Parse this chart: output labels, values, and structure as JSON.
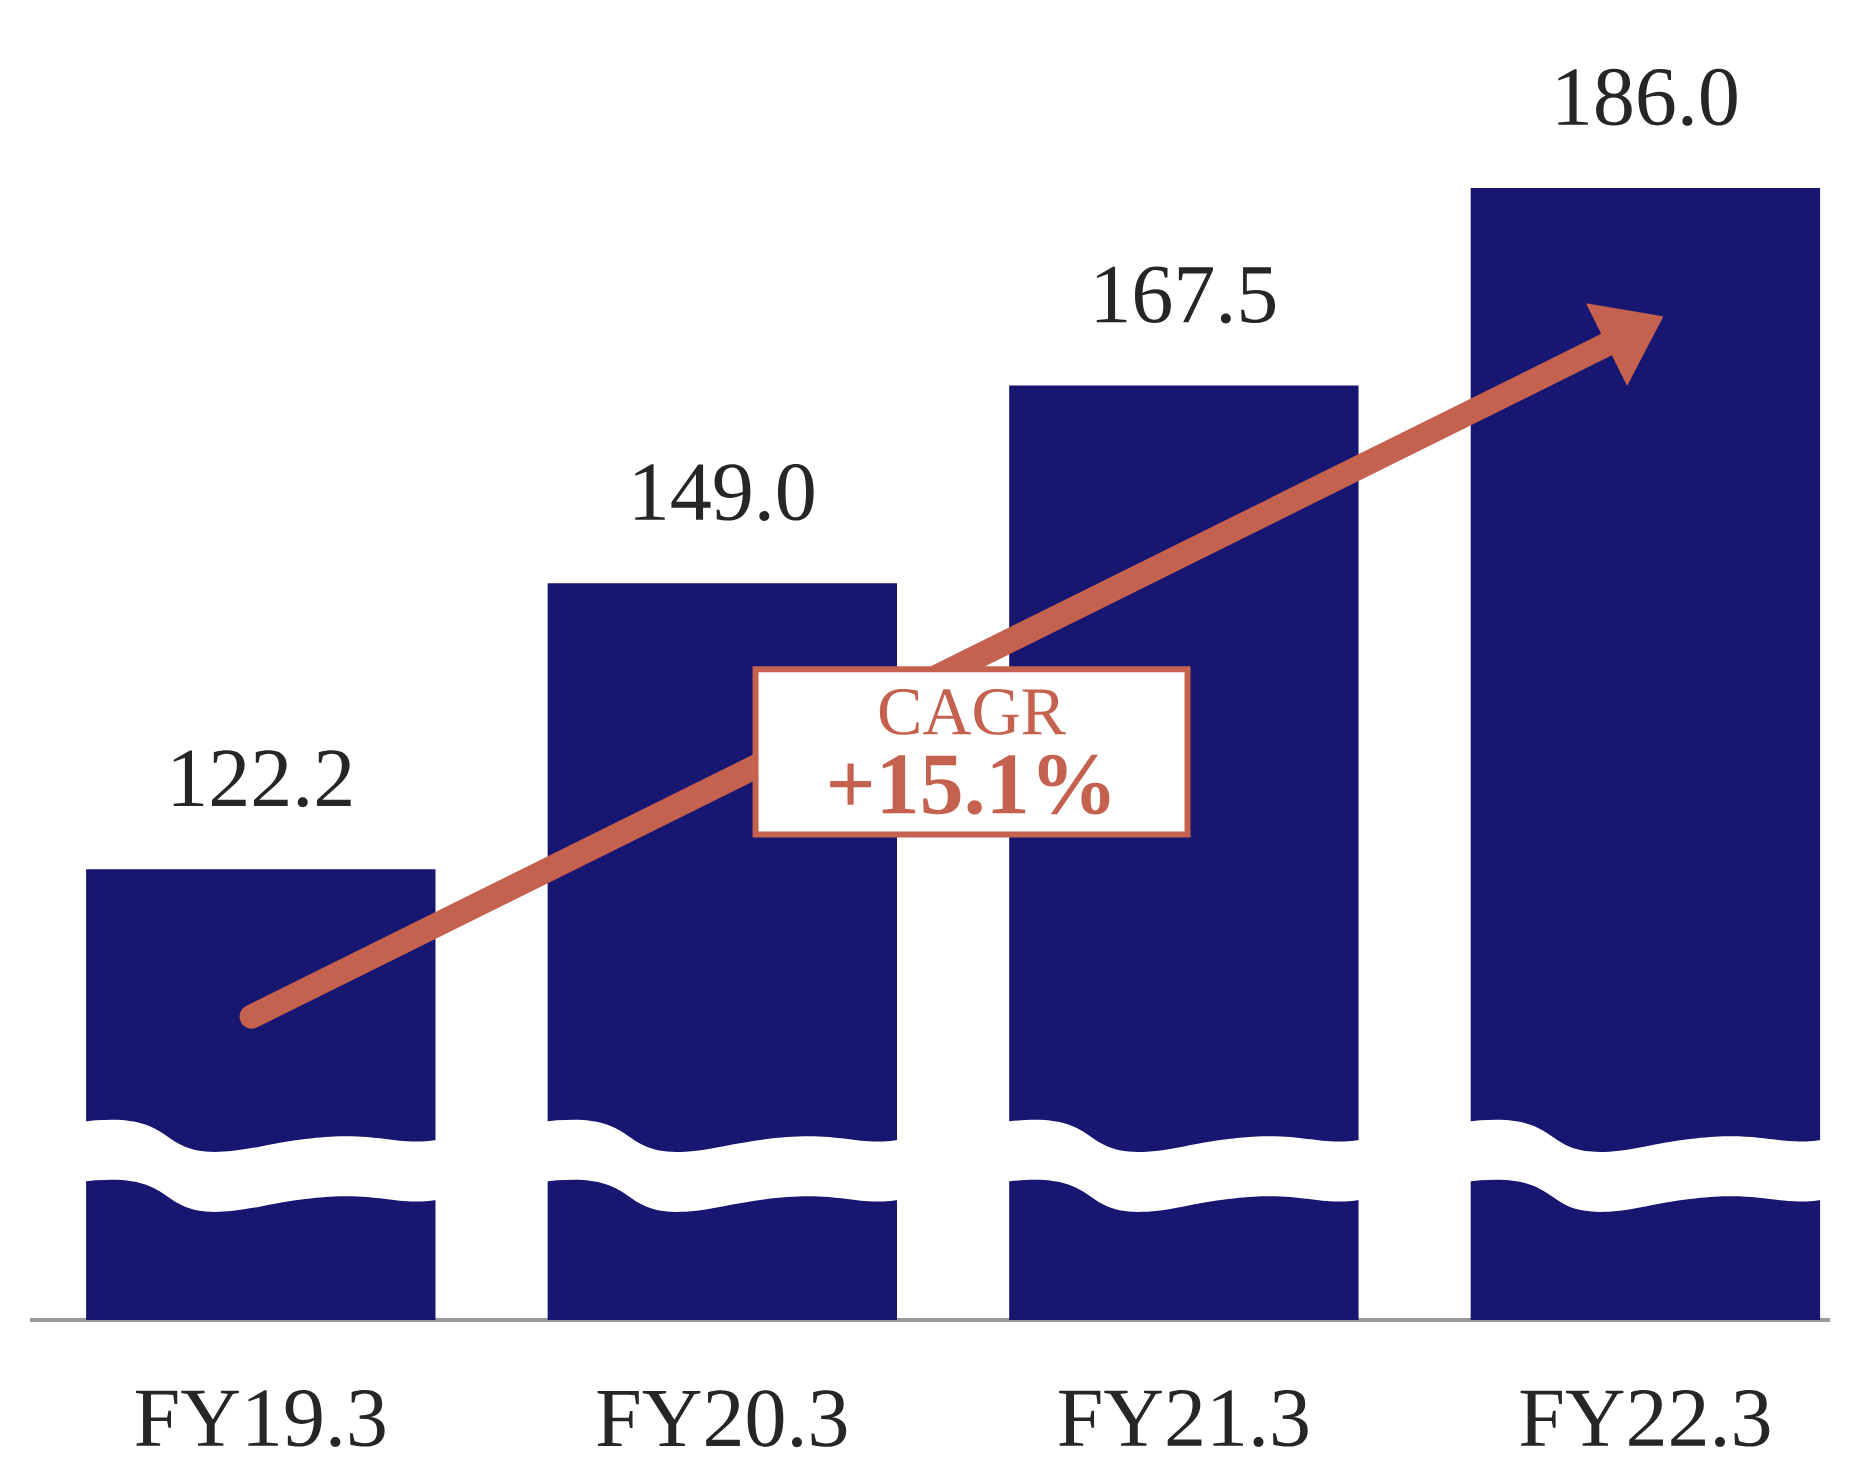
{
  "chart_data": {
    "type": "bar",
    "categories": [
      "FY19.3",
      "FY20.3",
      "FY21.3",
      "FY22.3"
    ],
    "values": [
      122.2,
      149.0,
      167.5,
      186.0
    ],
    "color": "#171670",
    "ylim": [
      80,
      186.0
    ],
    "value_labels": [
      "122.2",
      "149.0",
      "167.5",
      "186.0"
    ],
    "tick_labels": "x",
    "annotations": [
      "CAGR",
      "+15.1%"
    ]
  }
}
